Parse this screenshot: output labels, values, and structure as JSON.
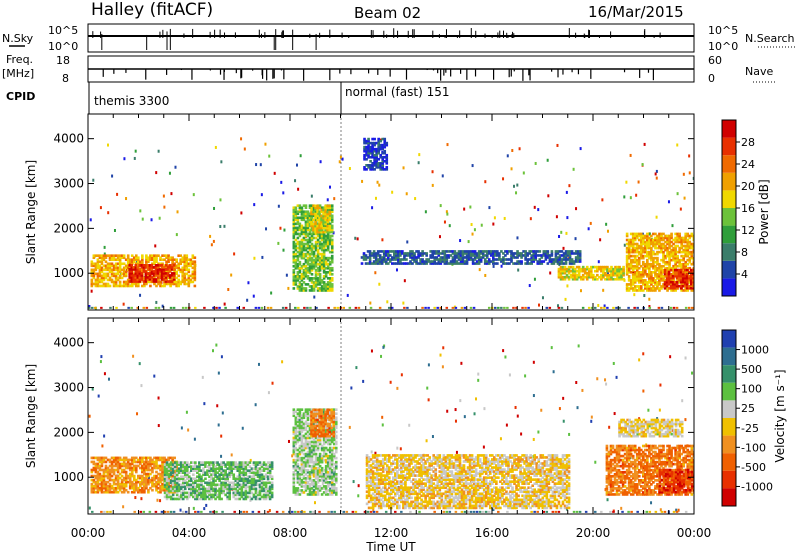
{
  "header": {
    "radar": "Halley (fitACF)",
    "beam": "Beam 02",
    "date": "16/Mar/2015"
  },
  "nsky_panel": {
    "left_label": "N.Sky",
    "right_label": "N.Search",
    "ticks_left": [
      "10^5",
      "10^0"
    ],
    "ticks_right": [
      "10^5",
      "10^0"
    ]
  },
  "freq_panel": {
    "left_label_1": "Freq.",
    "left_label_2": "[MHz]",
    "right_label": "Nave",
    "ticks_left": [
      "18",
      "8"
    ],
    "ticks_right": [
      "60",
      "0"
    ]
  },
  "cpid": {
    "label": "CPID",
    "modes": [
      {
        "name": "themis 3300",
        "start_hour": 0
      },
      {
        "name": "normal (fast) 151",
        "start_hour": 10
      }
    ]
  },
  "power_panel": {
    "ylabel": "Slant Range [km]",
    "yticks": [
      "1000",
      "2000",
      "3000",
      "4000"
    ],
    "colorbar_label": "Power [dB]",
    "colorbar_ticks": [
      "4",
      "8",
      "12",
      "16",
      "20",
      "24",
      "28"
    ],
    "colorbar_colors": [
      "#1a1ae6",
      "#2044a8",
      "#3a7d6a",
      "#2f9e3a",
      "#6cc23a",
      "#f0d800",
      "#f0a000",
      "#f06a00",
      "#e83000",
      "#d00000"
    ]
  },
  "velocity_panel": {
    "ylabel": "Slant Range [km]",
    "yticks": [
      "1000",
      "2000",
      "3000",
      "4000"
    ],
    "colorbar_label": "Velocity [m s⁻¹]",
    "colorbar_ticks": [
      "1000",
      "500",
      "100",
      "25",
      "-25",
      "-100",
      "-500",
      "-1000"
    ],
    "colorbar_colors": [
      "#2040b0",
      "#2e6e90",
      "#35906a",
      "#5cc040",
      "#c8c8c8",
      "#f0c000",
      "#f09020",
      "#f06000",
      "#e83000",
      "#d00000"
    ]
  },
  "x_axis": {
    "label": "Time UT",
    "ticks": [
      "00:00",
      "04:00",
      "08:00",
      "12:00",
      "16:00",
      "20:00",
      "00:00"
    ]
  },
  "chart_data": [
    {
      "type": "heatmap",
      "title": "Power",
      "xlabel": "Time UT",
      "ylabel": "Slant Range [km]",
      "xlim": [
        0,
        24
      ],
      "ylim": [
        180,
        4550
      ],
      "colorbar": "Power [dB]",
      "clim": [
        0,
        32
      ],
      "regions": [
        {
          "t0": 0.1,
          "t1": 4.2,
          "r0": 700,
          "r1": 1400,
          "value": 20
        },
        {
          "t0": 1.6,
          "t1": 3.4,
          "r0": 800,
          "r1": 1200,
          "value": 28
        },
        {
          "t0": 8.1,
          "t1": 9.7,
          "r0": 600,
          "r1": 2500,
          "value": 14
        },
        {
          "t0": 8.8,
          "t1": 9.6,
          "r0": 1900,
          "r1": 2500,
          "value": 18
        },
        {
          "t0": 10.8,
          "t1": 19.5,
          "r0": 1200,
          "r1": 1500,
          "value": 6
        },
        {
          "t0": 18.6,
          "t1": 21.2,
          "r0": 850,
          "r1": 1150,
          "value": 18
        },
        {
          "t0": 21.3,
          "t1": 24.0,
          "r0": 600,
          "r1": 1900,
          "value": 20
        },
        {
          "t0": 22.8,
          "t1": 24.0,
          "r0": 650,
          "r1": 1100,
          "value": 28
        },
        {
          "t0": 10.9,
          "t1": 11.8,
          "r0": 3300,
          "r1": 4000,
          "value": 4
        }
      ]
    },
    {
      "type": "heatmap",
      "title": "Velocity",
      "xlabel": "Time UT",
      "ylabel": "Slant Range [km]",
      "xlim": [
        0,
        24
      ],
      "ylim": [
        180,
        4550
      ],
      "colorbar": "Velocity [m s⁻¹]",
      "clim": [
        -1000,
        1000
      ],
      "regions": [
        {
          "t0": 0.1,
          "t1": 3.5,
          "r0": 650,
          "r1": 1450,
          "value": -300
        },
        {
          "t0": 3.0,
          "t1": 7.3,
          "r0": 500,
          "r1": 1350,
          "value": 300
        },
        {
          "t0": 8.1,
          "t1": 9.8,
          "r0": 600,
          "r1": 2500,
          "value": 200
        },
        {
          "t0": 8.8,
          "t1": 9.7,
          "r0": 1900,
          "r1": 2500,
          "value": -400
        },
        {
          "t0": 11.0,
          "t1": 19.0,
          "r0": 300,
          "r1": 1500,
          "value": -60
        },
        {
          "t0": 20.5,
          "t1": 24.0,
          "r0": 600,
          "r1": 1700,
          "value": -400
        },
        {
          "t0": 22.6,
          "t1": 24.0,
          "r0": 650,
          "r1": 1150,
          "value": -700
        },
        {
          "t0": 21.0,
          "t1": 23.5,
          "r0": 1900,
          "r1": 2300,
          "value": 0
        }
      ]
    }
  ]
}
